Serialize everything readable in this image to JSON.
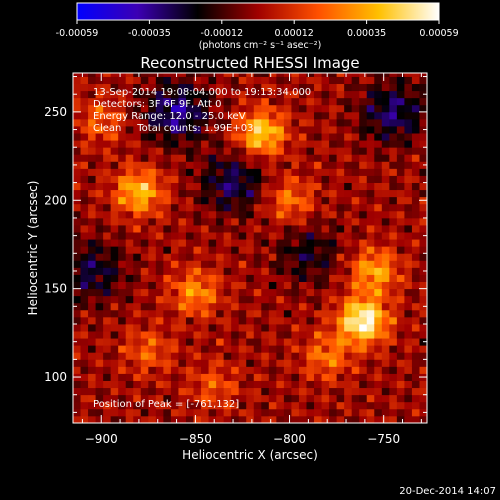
{
  "colorbar": {
    "ticks": [
      "-0.00059",
      "-0.00035",
      "-0.00012",
      "0.00012",
      "0.00035",
      "0.00059"
    ],
    "units_label": "(photons cm⁻² s⁻¹ asec⁻²)",
    "colormap": [
      "#0000ff",
      "#3c00b4",
      "#000000",
      "#a00000",
      "#ff5000",
      "#ffc000",
      "#ffffff"
    ]
  },
  "chart_data": {
    "type": "heatmap",
    "title": "Reconstructed RHESSI Image",
    "xlabel": "Heliocentric X (arcsec)",
    "ylabel": "Heliocentric Y (arcsec)",
    "xlim": [
      -915,
      -727
    ],
    "ylim": [
      74,
      272
    ],
    "x_ticks": [
      -900,
      -850,
      -800,
      -750
    ],
    "y_ticks": [
      100,
      150,
      200,
      250
    ],
    "value_range": [
      -0.00059,
      0.00059
    ],
    "grid_note": "image pixels approx 4 arcsec",
    "hotspots": [
      {
        "x": -761,
        "y": 132,
        "value": 0.00059
      },
      {
        "x": -815,
        "y": 238,
        "value": 0.00045
      },
      {
        "x": -880,
        "y": 205,
        "value": 0.0004
      },
      {
        "x": -755,
        "y": 160,
        "value": 0.00035
      },
      {
        "x": -850,
        "y": 148,
        "value": 0.0003
      },
      {
        "x": -800,
        "y": 200,
        "value": 0.00025
      },
      {
        "x": -900,
        "y": 245,
        "value": 0.0002
      },
      {
        "x": -780,
        "y": 112,
        "value": 0.00025
      },
      {
        "x": -875,
        "y": 115,
        "value": 0.0002
      },
      {
        "x": -840,
        "y": 95,
        "value": 0.00018
      }
    ],
    "coldspots": [
      {
        "x": -860,
        "y": 250,
        "value": -0.00035
      },
      {
        "x": -745,
        "y": 250,
        "value": -0.0003
      },
      {
        "x": -905,
        "y": 160,
        "value": -0.00025
      },
      {
        "x": -790,
        "y": 170,
        "value": -0.0002
      },
      {
        "x": -830,
        "y": 210,
        "value": -0.00028
      }
    ]
  },
  "annotations": {
    "time_range": "13-Sep-2014 19:08:04.000 to 19:13:34.000",
    "detectors": "Detectors: 3F 6F 9F, Att 0",
    "energy": "Energy Range: 12.0 - 25.0 keV",
    "clean": "Clean     Total counts: 1.99E+03",
    "peak": "Position of Peak = [-761,132]"
  },
  "footer": {
    "timestamp": "20-Dec-2014 14:07"
  }
}
